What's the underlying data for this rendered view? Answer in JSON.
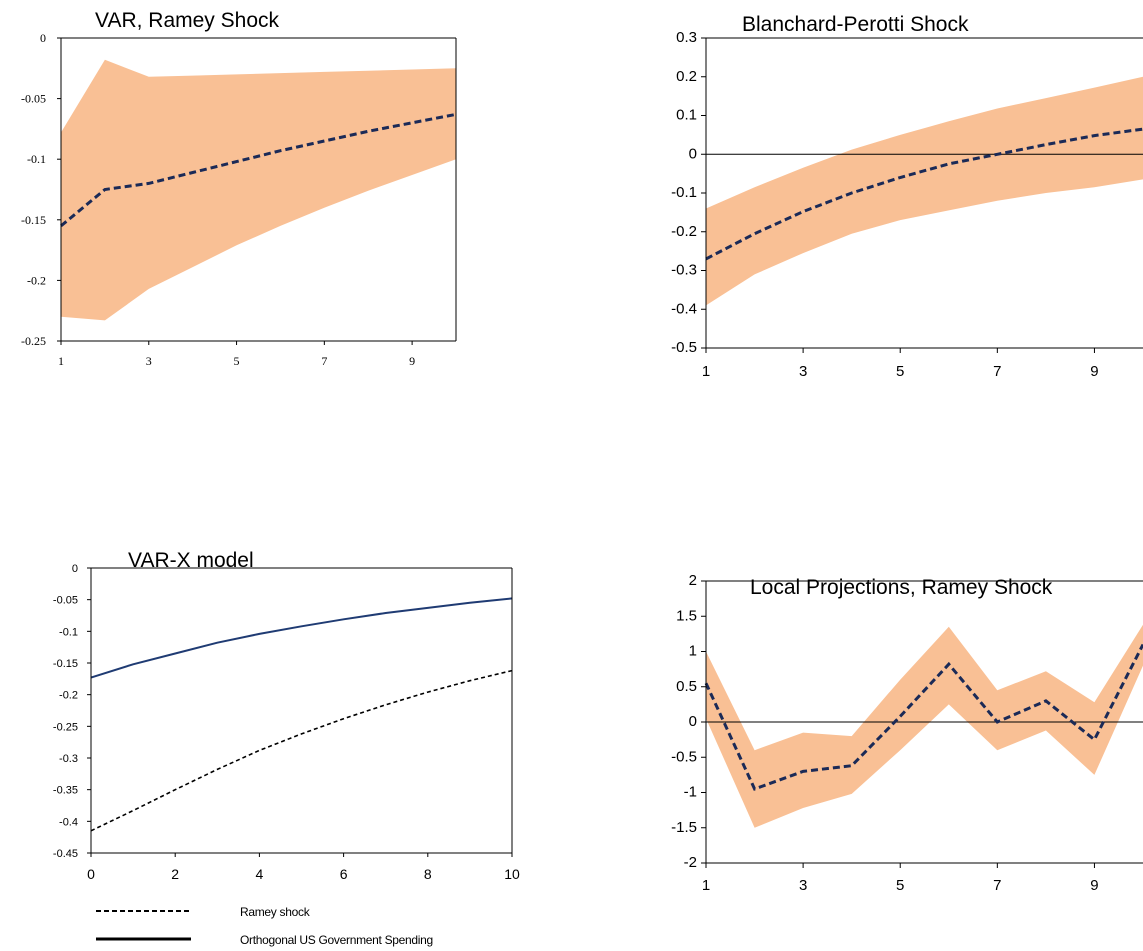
{
  "colors": {
    "band": "#f9c095",
    "dashed_line": "#1b2a57",
    "solid_line": "#1f3b73",
    "black_dashed": "#000000",
    "zero_line": "#000000",
    "frame": "#000000"
  },
  "chart_data": [
    {
      "type": "line",
      "title": "VAR, Ramey Shock",
      "x": [
        1,
        2,
        3,
        4,
        5,
        6,
        7,
        8,
        9,
        10
      ],
      "xticks": [
        1,
        3,
        5,
        7,
        9
      ],
      "xtick_labels": [
        "1",
        "3",
        "5",
        "7",
        "9"
      ],
      "yticks": [
        0,
        -0.05,
        -0.1,
        -0.15,
        -0.2,
        -0.25
      ],
      "ytick_labels": [
        "0",
        "-0.05",
        "-0.1",
        "-0.15",
        "-0.2",
        "-0.25"
      ],
      "xlim": [
        1,
        10
      ],
      "ylim": [
        -0.25,
        0
      ],
      "series": [
        {
          "style": "dashed",
          "values": [
            -0.155,
            -0.125,
            -0.12,
            -0.111,
            -0.102,
            -0.093,
            -0.085,
            -0.077,
            -0.07,
            -0.063
          ]
        }
      ],
      "band": {
        "upper": [
          -0.078,
          -0.018,
          -0.032,
          -0.031,
          -0.03,
          -0.029,
          -0.028,
          -0.027,
          -0.026,
          -0.025
        ],
        "lower": [
          -0.23,
          -0.233,
          -0.207,
          -0.189,
          -0.171,
          -0.155,
          -0.14,
          -0.126,
          -0.113,
          -0.1
        ]
      }
    },
    {
      "type": "line",
      "title": "Blanchard-Perotti Shock",
      "x": [
        1,
        2,
        3,
        4,
        5,
        6,
        7,
        8,
        9,
        10
      ],
      "xticks": [
        1,
        3,
        5,
        7,
        9
      ],
      "xtick_labels": [
        "1",
        "3",
        "5",
        "7",
        "9"
      ],
      "yticks": [
        0.3,
        0.2,
        0.1,
        0,
        -0.1,
        -0.2,
        -0.3,
        -0.4,
        -0.5
      ],
      "ytick_labels": [
        "0.3",
        "0.2",
        "0.1",
        "0",
        "-0.1",
        "-0.2",
        "-0.3",
        "-0.4",
        "-0.5"
      ],
      "xlim": [
        1,
        10
      ],
      "ylim": [
        -0.5,
        0.3
      ],
      "zero_line": true,
      "series": [
        {
          "style": "dashed",
          "values": [
            -0.27,
            -0.205,
            -0.148,
            -0.1,
            -0.06,
            -0.025,
            0.0,
            0.025,
            0.048,
            0.065
          ]
        }
      ],
      "band": {
        "upper": [
          -0.14,
          -0.085,
          -0.035,
          0.012,
          0.05,
          0.085,
          0.118,
          0.145,
          0.172,
          0.2
        ],
        "lower": [
          -0.39,
          -0.31,
          -0.255,
          -0.205,
          -0.17,
          -0.145,
          -0.12,
          -0.1,
          -0.085,
          -0.065
        ]
      }
    },
    {
      "type": "line",
      "title": "VAR-X model",
      "x": [
        0,
        1,
        2,
        3,
        4,
        5,
        6,
        7,
        8,
        9,
        10
      ],
      "xticks": [
        0,
        2,
        4,
        6,
        8,
        10
      ],
      "xtick_labels": [
        "0",
        "2",
        "4",
        "6",
        "8",
        "10"
      ],
      "yticks": [
        0,
        -0.05,
        -0.1,
        -0.15,
        -0.2,
        -0.25,
        -0.3,
        -0.35,
        -0.4,
        -0.45
      ],
      "ytick_labels": [
        "0",
        "-0.05",
        "-0.1",
        "-0.15",
        "-0.2",
        "-0.25",
        "-0.3",
        "-0.35",
        "-0.4",
        "-0.45"
      ],
      "xlim": [
        0,
        10
      ],
      "ylim": [
        -0.45,
        0
      ],
      "series": [
        {
          "name": "Ramey shock",
          "style": "black-dashed",
          "values": [
            -0.415,
            -0.383,
            -0.35,
            -0.318,
            -0.288,
            -0.262,
            -0.238,
            -0.216,
            -0.196,
            -0.178,
            -0.162
          ]
        },
        {
          "name": "Orthogonal US Government Spending",
          "style": "solid",
          "values": [
            -0.173,
            -0.152,
            -0.135,
            -0.118,
            -0.104,
            -0.092,
            -0.081,
            -0.071,
            -0.063,
            -0.055,
            -0.048
          ]
        }
      ],
      "legend": [
        {
          "label": "Ramey shock",
          "style": "black-dashed"
        },
        {
          "label": "Orthogonal US Government Spending",
          "style": "solid-black"
        }
      ]
    },
    {
      "type": "line",
      "title": "Local Projections, Ramey Shock",
      "x": [
        1,
        2,
        3,
        4,
        5,
        6,
        7,
        8,
        9,
        10
      ],
      "xticks": [
        1,
        3,
        5,
        7,
        9
      ],
      "xtick_labels": [
        "1",
        "3",
        "5",
        "7",
        "9"
      ],
      "yticks": [
        2,
        1.5,
        1,
        0.5,
        0,
        -0.5,
        -1,
        -1.5,
        -2
      ],
      "ytick_labels": [
        "2",
        "1.5",
        "1",
        "0.5",
        "0",
        "-0.5",
        "-1",
        "-1.5",
        "-2"
      ],
      "xlim": [
        1,
        10
      ],
      "ylim": [
        -2,
        2
      ],
      "zero_line": true,
      "series": [
        {
          "style": "dashed",
          "values": [
            0.55,
            -0.95,
            -0.7,
            -0.62,
            0.08,
            0.82,
            0.0,
            0.3,
            -0.25,
            1.1
          ]
        }
      ],
      "band": {
        "upper": [
          1.0,
          -0.4,
          -0.15,
          -0.2,
          0.6,
          1.35,
          0.45,
          0.72,
          0.28,
          1.38
        ],
        "lower": [
          0.05,
          -1.5,
          -1.22,
          -1.02,
          -0.4,
          0.25,
          -0.4,
          -0.12,
          -0.75,
          0.8
        ]
      }
    }
  ]
}
